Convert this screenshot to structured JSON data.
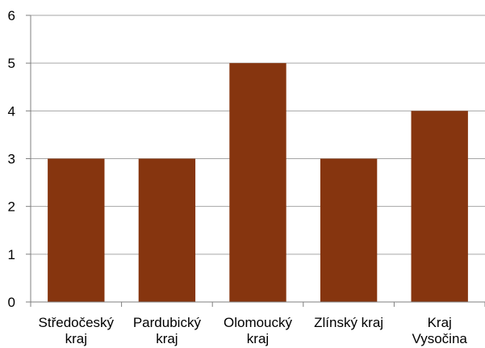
{
  "chart_data": {
    "type": "bar",
    "categories": [
      [
        "Středočeský",
        "kraj"
      ],
      [
        "Pardubický",
        "kraj"
      ],
      [
        "Olomoucký",
        "kraj"
      ],
      [
        "Zlínský kraj"
      ],
      [
        "Kraj",
        "Vysočina"
      ]
    ],
    "values": [
      3,
      3,
      5,
      3,
      4
    ],
    "ylim": [
      0,
      6
    ],
    "yticks": [
      "0",
      "1",
      "2",
      "3",
      "4",
      "5",
      "6"
    ],
    "grid": true,
    "colors": {
      "bar": "#86350F",
      "grid": "#A6A6A6",
      "axis": "#7F7F7F"
    }
  }
}
